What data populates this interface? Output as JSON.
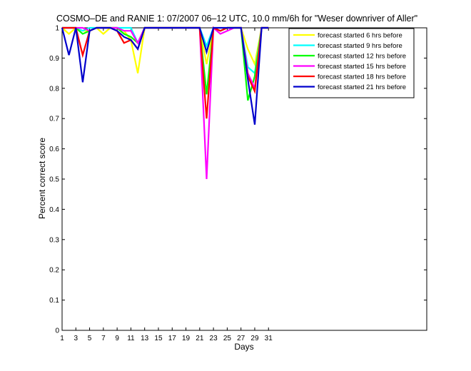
{
  "chart_data": {
    "type": "line",
    "title": "COSMO–DE and RANIE 1: 07/2007 06–12 UTC, 10.0 mm/6h for \"Weser downriver of Aller\"",
    "xlabel": "Days",
    "ylabel": "Percent correct score",
    "xlim": [
      1,
      54
    ],
    "ylim": [
      0,
      1
    ],
    "x_ticks": [
      1,
      3,
      5,
      7,
      9,
      11,
      13,
      15,
      17,
      19,
      21,
      23,
      25,
      27,
      29,
      31
    ],
    "y_ticks": [
      0,
      0.1,
      0.2,
      0.3,
      0.4,
      0.5,
      0.6,
      0.7,
      0.8,
      0.9,
      1
    ],
    "y_tick_labels": [
      "0",
      "0.1",
      "0.2",
      "0.3",
      "0.4",
      "0.5",
      "0.6",
      "0.7",
      "0.8",
      "0.9",
      "1"
    ],
    "grid": false,
    "legend_position": "top-right",
    "series": [
      {
        "name": "forecast started 6 hrs before",
        "color": "#ffff00",
        "x": [
          1,
          2,
          3,
          4,
          5,
          6,
          7,
          8,
          9,
          10,
          11,
          12,
          13,
          21,
          22,
          23,
          24,
          25,
          26,
          27,
          28,
          29,
          30,
          31
        ],
        "y": [
          1,
          0.98,
          1,
          0.99,
          0.99,
          1,
          0.98,
          1,
          1,
          0.99,
          0.96,
          0.85,
          1,
          1,
          0.88,
          1,
          0.99,
          1,
          1,
          1,
          0.93,
          0.88,
          1,
          1
        ]
      },
      {
        "name": "forecast started 9 hrs before",
        "color": "#00ffff",
        "x": [
          1,
          2,
          3,
          4,
          5,
          6,
          7,
          8,
          9,
          10,
          11,
          12,
          13,
          21,
          22,
          23,
          24,
          25,
          26,
          27,
          28,
          29,
          30,
          31
        ],
        "y": [
          1,
          1,
          1,
          0.99,
          1,
          1,
          1,
          1,
          1,
          1,
          1,
          0.95,
          1,
          1,
          0.94,
          1,
          0.99,
          1,
          1,
          1,
          0.87,
          0.85,
          1,
          1
        ]
      },
      {
        "name": "forecast started 12 hrs before",
        "color": "#00ff00",
        "x": [
          1,
          2,
          3,
          4,
          5,
          6,
          7,
          8,
          9,
          10,
          11,
          12,
          13,
          21,
          22,
          23,
          24,
          25,
          26,
          27,
          28,
          29,
          30,
          31
        ],
        "y": [
          1,
          1,
          1,
          0.98,
          0.99,
          1,
          1,
          1,
          1,
          0.98,
          0.97,
          0.95,
          1,
          1,
          0.78,
          1,
          0.99,
          1,
          1,
          1,
          0.76,
          0.84,
          1,
          1
        ]
      },
      {
        "name": "forecast started 15 hrs before",
        "color": "#ff00ff",
        "x": [
          1,
          2,
          3,
          4,
          5,
          6,
          7,
          8,
          9,
          10,
          11,
          12,
          13,
          21,
          22,
          23,
          24,
          25,
          26,
          27,
          28,
          29,
          30,
          31
        ],
        "y": [
          1,
          1,
          1,
          1,
          0.99,
          1,
          1,
          1,
          1,
          0.99,
          0.99,
          0.95,
          1,
          1,
          0.5,
          1,
          0.98,
          0.99,
          1,
          1,
          0.85,
          0.8,
          1,
          1
        ]
      },
      {
        "name": "forecast started 18 hrs before",
        "color": "#ff0000",
        "x": [
          1,
          2,
          3,
          4,
          5,
          6,
          7,
          8,
          9,
          10,
          11,
          12,
          13,
          21,
          22,
          23,
          24,
          25,
          26,
          27,
          28,
          29,
          30,
          31
        ],
        "y": [
          1,
          1,
          1,
          0.91,
          0.99,
          1,
          1,
          1,
          0.99,
          0.95,
          0.96,
          0.93,
          1,
          1,
          0.7,
          1,
          0.99,
          1,
          1,
          1,
          0.84,
          0.79,
          1,
          1
        ]
      },
      {
        "name": "forecast started 21 hrs before",
        "color": "#0000cc",
        "x": [
          1,
          2,
          3,
          4,
          5,
          6,
          7,
          8,
          9,
          10,
          11,
          12,
          13,
          21,
          22,
          23,
          24,
          25,
          26,
          27,
          28,
          29,
          30,
          31
        ],
        "y": [
          1,
          0.91,
          1,
          0.82,
          0.99,
          1,
          1,
          1,
          0.99,
          0.97,
          0.96,
          0.93,
          1,
          1,
          0.92,
          1,
          1,
          1,
          1,
          1,
          0.83,
          0.68,
          1,
          1
        ]
      }
    ]
  }
}
